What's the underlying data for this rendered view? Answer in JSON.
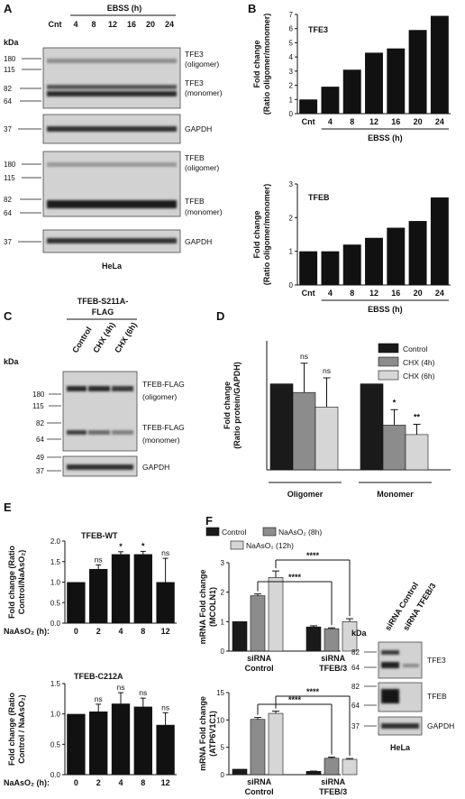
{
  "panels": {
    "A": "A",
    "B": "B",
    "C": "C",
    "D": "D",
    "E": "E",
    "F": "F"
  },
  "panel_a": {
    "ebss_label": "EBSS (h)",
    "lanes": [
      "Cnt",
      "4",
      "8",
      "12",
      "16",
      "20",
      "24"
    ],
    "kda": "kDa",
    "blot1_markers": [
      "180",
      "115",
      "82",
      "64"
    ],
    "blot1_labels": [
      "TFE3",
      "(oligomer)",
      "TFE3",
      "(monomer)"
    ],
    "blot2_marker": "37",
    "blot2_label": "GAPDH",
    "blot3_markers": [
      "180",
      "115",
      "82",
      "64"
    ],
    "blot3_labels": [
      "TFEB",
      "(oligomer)",
      "TFEB",
      "(monomer)"
    ],
    "blot4_marker": "37",
    "blot4_label": "GAPDH",
    "cell_line": "HeLa"
  },
  "panel_c": {
    "construct": [
      "TFEB-S211A-",
      "FLAG"
    ],
    "lanes": [
      "Control",
      "CHX (4h)",
      "CHX (6h)"
    ],
    "kda": "kDa",
    "blot1_markers": [
      "180",
      "115",
      "82",
      "64"
    ],
    "blot1_labels": [
      "TFEB-FLAG",
      "(oligomer)",
      "TFEB-FLAG",
      "(monomer)"
    ],
    "blot2_markers": [
      "49",
      "37"
    ],
    "blot2_label": "GAPDH"
  },
  "panel_f_blot": {
    "lanes": [
      "siRNA Control",
      "siRNA TFEB/3"
    ],
    "kda": "kDa",
    "blot1_markers": [
      "82",
      "64"
    ],
    "blot1_label": "TFE3",
    "blot2_markers": [
      "82",
      "64"
    ],
    "blot2_label": "TFEB",
    "blot3_marker": "37",
    "blot3_label": "GAPDH",
    "cell_line": "HeLa"
  },
  "chart_data": [
    {
      "panel": "B-top",
      "type": "bar",
      "title": "TFE3",
      "categories": [
        "Cnt",
        "4",
        "8",
        "12",
        "16",
        "20",
        "24"
      ],
      "values": [
        1,
        1.9,
        3.1,
        4.3,
        4.6,
        5.9,
        6.9
      ],
      "ylim": [
        0,
        7
      ],
      "yticks": [
        0,
        1,
        2,
        3,
        4,
        5,
        6,
        7
      ],
      "ylabel": [
        "Fold change",
        "(Ratio oligomer/monomer)"
      ],
      "xlabel": "EBSS (h)",
      "color": "#111111"
    },
    {
      "panel": "B-bottom",
      "type": "bar",
      "title": "TFEB",
      "categories": [
        "Cnt",
        "4",
        "8",
        "12",
        "16",
        "20",
        "24"
      ],
      "values": [
        1,
        1,
        1.2,
        1.4,
        1.7,
        1.9,
        2.6
      ],
      "ylim": [
        0,
        3
      ],
      "yticks": [
        0,
        1,
        2,
        3
      ],
      "ylabel": [
        "Fold change",
        "(Ratio oligomer/monomer)"
      ],
      "xlabel": "EBSS (h)",
      "color": "#111111"
    },
    {
      "panel": "D",
      "type": "bar",
      "groups": [
        "Oligomer",
        "Monomer"
      ],
      "series": [
        {
          "name": "Control",
          "color": "#1a1a1a",
          "values": [
            1,
            1
          ],
          "errors": [
            0,
            0
          ],
          "sig": [
            "",
            ""
          ]
        },
        {
          "name": "CHX (4h)",
          "color": "#8c8c8c",
          "values": [
            0.9,
            0.52
          ],
          "errors": [
            0.34,
            0.18
          ],
          "sig": [
            "ns",
            "*"
          ]
        },
        {
          "name": "CHX (6h)",
          "color": "#d6d6d6",
          "values": [
            0.73,
            0.41
          ],
          "errors": [
            0.34,
            0.12
          ],
          "sig": [
            "ns",
            "**"
          ]
        }
      ],
      "ylabel": [
        "Fold change",
        "(Ratio protein/GAPDH)"
      ],
      "ylim": [
        0,
        1.5
      ]
    },
    {
      "panel": "E-top",
      "type": "bar",
      "title": "TFEB-WT",
      "categories": [
        "0",
        "2",
        "4",
        "8",
        "12"
      ],
      "values": [
        1,
        1.32,
        1.68,
        1.68,
        1.0
      ],
      "errors": [
        0,
        0.1,
        0.06,
        0.07,
        0.58
      ],
      "sig": [
        "",
        "ns",
        "*",
        "*",
        "ns"
      ],
      "ylim": [
        0.0,
        2.0
      ],
      "yticks": [
        "0.0",
        "0.5",
        "1.0",
        "1.5",
        "2.0"
      ],
      "ylabel": [
        "Fold change (Ratio",
        "Control/NaAsO₂)"
      ],
      "xlabel": "NaAsO₂ (h):",
      "color": "#111111"
    },
    {
      "panel": "E-bottom",
      "type": "bar",
      "title": "TFEB-C212A",
      "categories": [
        "0",
        "2",
        "4",
        "8",
        "12"
      ],
      "values": [
        1,
        1.04,
        1.17,
        1.12,
        0.82
      ],
      "errors": [
        0,
        0.12,
        0.18,
        0.14,
        0.2
      ],
      "sig": [
        "",
        "ns",
        "ns",
        "ns",
        "ns"
      ],
      "ylim": [
        0.0,
        1.5
      ],
      "yticks": [
        "0.0",
        "0.5",
        "1.0",
        "1.5"
      ],
      "ylabel": [
        "Fold change (Ratio",
        "Control / NaAsO₂)"
      ],
      "xlabel": "NaAsO₂ (h):",
      "color": "#111111"
    },
    {
      "panel": "F-top",
      "type": "bar",
      "groups": [
        "siRNA\nControl",
        "siRNA\nTFEB/3"
      ],
      "series": [
        {
          "name": "Control",
          "color": "#1a1a1a",
          "values": [
            1,
            0.82
          ],
          "errors": [
            0,
            0.04
          ]
        },
        {
          "name": "NaAsO₂ (8h)",
          "color": "#8c8c8c",
          "values": [
            1.88,
            0.76
          ],
          "errors": [
            0.06,
            0.03
          ]
        },
        {
          "name": "NaAsO₂ (12h)",
          "color": "#d6d6d6",
          "values": [
            2.5,
            1.0
          ],
          "errors": [
            0.22,
            0.1
          ]
        }
      ],
      "sig": [
        "****",
        "****"
      ],
      "ylim": [
        0,
        3
      ],
      "yticks": [
        0,
        1,
        2,
        3
      ],
      "ylabel": [
        "mRNA Fold change",
        "(MCOLN1)"
      ]
    },
    {
      "panel": "F-bottom",
      "type": "bar",
      "groups": [
        "siRNA\nControl",
        "siRNA\nTFEB/3"
      ],
      "series": [
        {
          "name": "Control",
          "color": "#1a1a1a",
          "values": [
            1,
            0.6
          ],
          "errors": [
            0,
            0.05
          ]
        },
        {
          "name": "NaAsO₂ (8h)",
          "color": "#8c8c8c",
          "values": [
            10.1,
            3.0
          ],
          "errors": [
            0.35,
            0.2
          ]
        },
        {
          "name": "NaAsO₂ (12h)",
          "color": "#d6d6d6",
          "values": [
            11.2,
            2.8
          ],
          "errors": [
            0.4,
            0.15
          ]
        }
      ],
      "sig": [
        "****",
        "****"
      ],
      "ylim": [
        0,
        15
      ],
      "yticks": [
        0,
        5,
        10,
        15
      ],
      "ylabel": [
        "mRNA Fold change",
        "(ATP6V1C1)"
      ]
    }
  ]
}
